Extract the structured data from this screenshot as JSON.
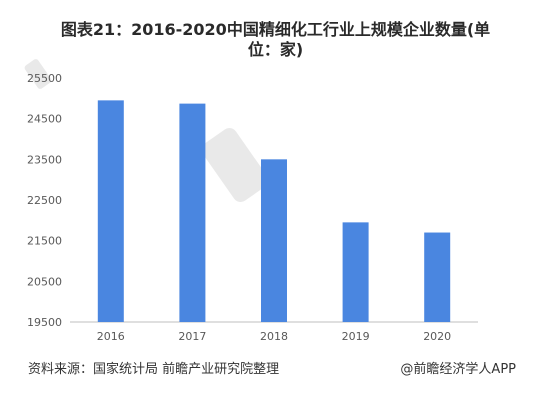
{
  "title_line1": "图表21：2016-2020中国精细化工行业上规模企业数量(单",
  "title_line2": "位：家)",
  "source": "资料来源：国家统计局 前瞻产业研究院整理",
  "brand": "@前瞻经济学人APP",
  "colors": {
    "bar": "#4a86e0",
    "axis": "#bfbfbf",
    "text": "#595959"
  },
  "chart_data": {
    "type": "bar",
    "title": "图表21：2016-2020中国精细化工行业上规模企业数量(单位：家)",
    "xlabel": "",
    "ylabel": "",
    "categories": [
      "2016",
      "2017",
      "2018",
      "2019",
      "2020"
    ],
    "series": [
      {
        "values": [
          24950,
          24870,
          23500,
          21950,
          21700
        ]
      }
    ],
    "ylim": [
      19500,
      25500
    ],
    "yticks": [
      "19500",
      "20500",
      "21500",
      "22500",
      "23500",
      "24500",
      "25500"
    ],
    "grid": false,
    "legend": "none"
  }
}
